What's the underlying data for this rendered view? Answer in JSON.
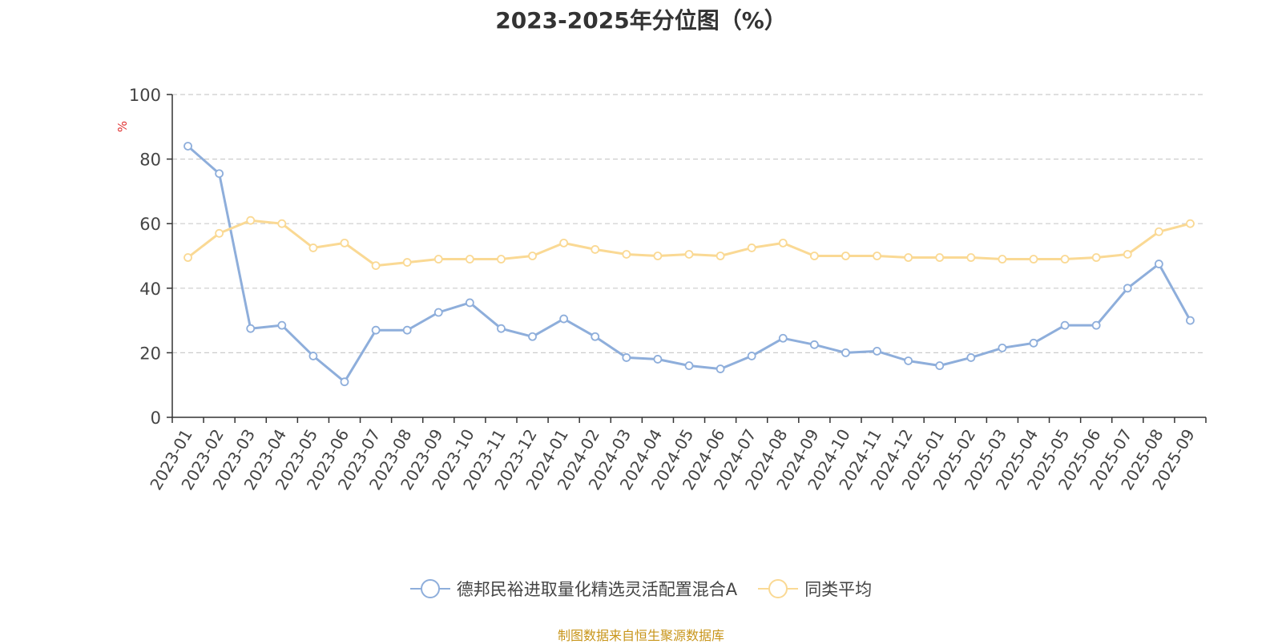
{
  "chart_data": {
    "type": "line",
    "title": "2023-2025年分位图（%）",
    "ylabel": "%",
    "xlabel": "",
    "ylim": [
      0,
      100
    ],
    "yticks": [
      0,
      20,
      40,
      60,
      80,
      100
    ],
    "grid": true,
    "legend_position": "bottom",
    "categories": [
      "2023-01",
      "2023-02",
      "2023-03",
      "2023-04",
      "2023-05",
      "2023-06",
      "2023-07",
      "2023-08",
      "2023-09",
      "2023-10",
      "2023-11",
      "2023-12",
      "2024-01",
      "2024-02",
      "2024-03",
      "2024-04",
      "2024-05",
      "2024-06",
      "2024-07",
      "2024-08",
      "2024-09",
      "2024-10",
      "2024-11",
      "2024-12",
      "2025-01",
      "2025-02",
      "2025-03",
      "2025-04",
      "2025-05",
      "2025-06",
      "2025-07",
      "2025-08",
      "2025-09"
    ],
    "series": [
      {
        "name": "德邦民裕进取量化精选灵活配置混合A",
        "color": "#8eaedb",
        "values": [
          84,
          75.5,
          27.5,
          28.5,
          19,
          11,
          27,
          27,
          32.5,
          35.5,
          27.5,
          25,
          30.5,
          25,
          18.5,
          18,
          16,
          15,
          19,
          24.5,
          22.5,
          20,
          20.5,
          17.5,
          16,
          18.5,
          21.5,
          23,
          28.5,
          28.5,
          40,
          47.5,
          30
        ]
      },
      {
        "name": "同类平均",
        "color": "#fad994",
        "values": [
          49.5,
          57,
          61,
          60,
          52.5,
          54,
          47,
          48,
          49,
          49,
          49,
          50,
          54,
          52,
          50.5,
          50,
          50.5,
          50,
          52.5,
          54,
          50,
          50,
          50,
          49.5,
          49.5,
          49.5,
          49,
          49,
          49,
          49.5,
          50.5,
          57.5,
          60
        ]
      }
    ]
  },
  "source_note": "制图数据来自恒生聚源数据库"
}
